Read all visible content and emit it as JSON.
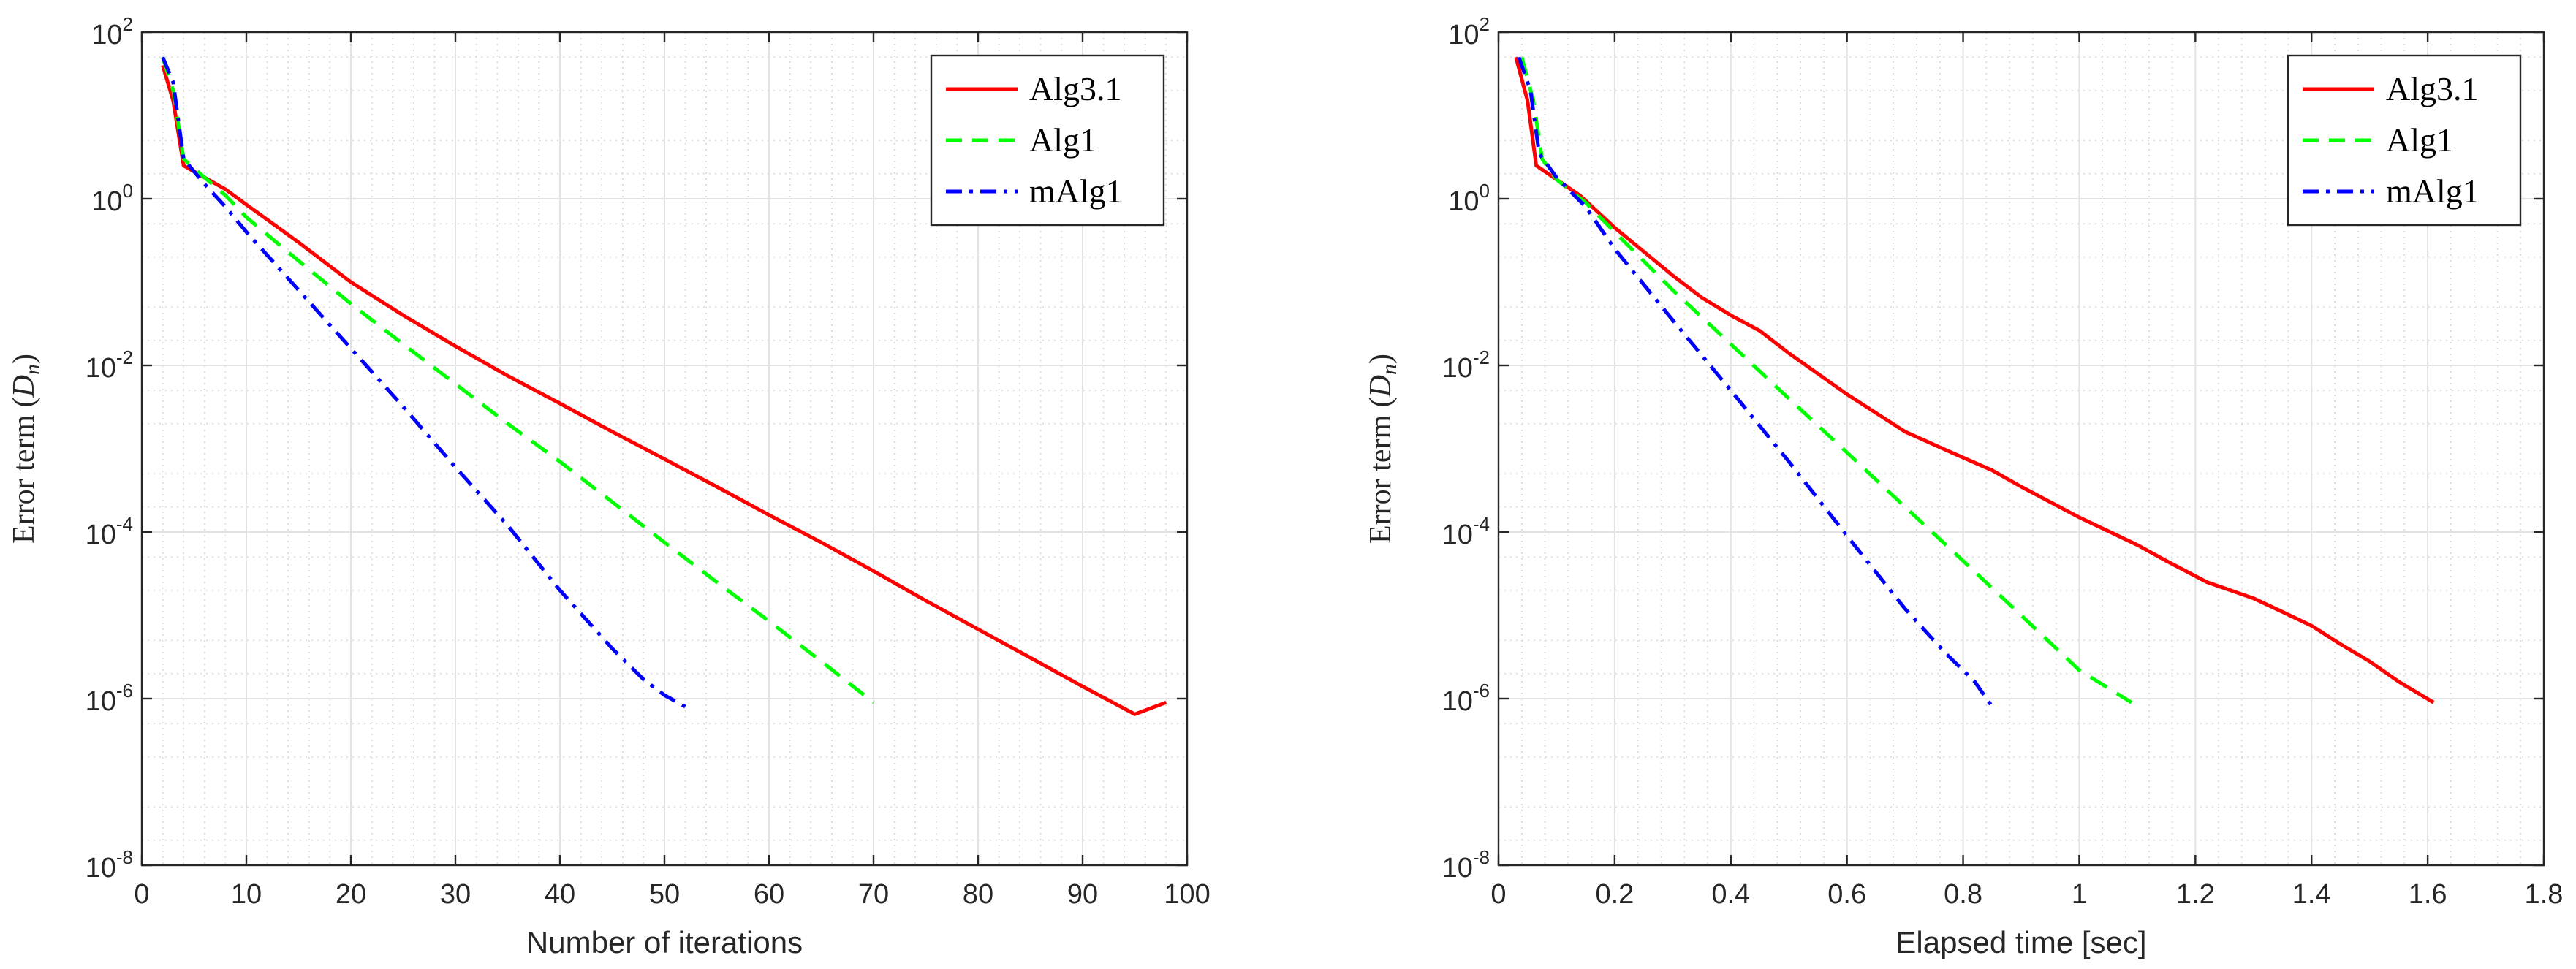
{
  "charts": [
    {
      "type": "line",
      "xlabel": "Number of iterations",
      "ylabel_main": "Error term (",
      "ylabel_var": "D",
      "ylabel_sub": "n",
      "ylabel_close": ")",
      "xlim": [
        0,
        100
      ],
      "xticks": [
        0,
        10,
        20,
        30,
        40,
        50,
        60,
        70,
        80,
        90,
        100
      ],
      "xtick_labels": [
        "0",
        "10",
        "20",
        "30",
        "40",
        "50",
        "60",
        "70",
        "80",
        "90",
        "100"
      ],
      "xminor_step": 2,
      "ylim_log10": [
        -8,
        2
      ],
      "yticks_log10": [
        -8,
        -6,
        -4,
        -2,
        0,
        2
      ],
      "ytick_base": "10",
      "ytick_exps": [
        "-8",
        "-6",
        "-4",
        "-2",
        "0",
        "2"
      ],
      "yminor": [
        2,
        5
      ],
      "grid": true,
      "legend": {
        "location": "top-right",
        "entries": [
          "Alg3.1",
          "Alg1",
          "mAlg1"
        ]
      },
      "series": [
        {
          "name": "Alg3.1",
          "color": "#ff0000",
          "style": "solid",
          "x": [
            2,
            3,
            4,
            6,
            8,
            10,
            15,
            20,
            25,
            30,
            35,
            40,
            45,
            50,
            55,
            60,
            65,
            70,
            75,
            80,
            85,
            90,
            95,
            98
          ],
          "y": [
            40,
            15,
            2.5,
            1.8,
            1.3,
            0.85,
            0.3,
            0.1,
            0.04,
            0.017,
            0.0075,
            0.0035,
            0.0016,
            0.00075,
            0.00035,
            0.00016,
            7.5e-05,
            3.4e-05,
            1.5e-05,
            6.8e-06,
            3.1e-06,
            1.4e-06,
            6.5e-07,
            9e-07
          ]
        },
        {
          "name": "Alg1",
          "color": "#00ff00",
          "style": "dashed",
          "x": [
            2,
            3,
            4,
            6,
            8,
            10,
            15,
            20,
            25,
            30,
            35,
            40,
            45,
            50,
            55,
            60,
            65,
            70
          ],
          "y": [
            50,
            20,
            3,
            1.8,
            1.1,
            0.6,
            0.18,
            0.055,
            0.018,
            0.006,
            0.002,
            0.0007,
            0.00023,
            7.5e-05,
            2.5e-05,
            8.5e-06,
            2.8e-06,
            9e-07
          ]
        },
        {
          "name": "mAlg1",
          "color": "#0000ff",
          "style": "dashdot",
          "x": [
            2,
            3,
            4,
            6,
            8,
            10,
            15,
            20,
            25,
            30,
            35,
            40,
            45,
            48,
            50,
            52
          ],
          "y": [
            50,
            25,
            3,
            1.5,
            0.8,
            0.4,
            0.08,
            0.016,
            0.0032,
            0.0006,
            0.00012,
            2e-05,
            4e-06,
            1.7e-06,
            1.1e-06,
            8e-07
          ]
        }
      ]
    },
    {
      "type": "line",
      "xlabel": "Elapsed time [sec]",
      "ylabel_main": "Error term (",
      "ylabel_var": "D",
      "ylabel_sub": "n",
      "ylabel_close": ")",
      "xlim": [
        0,
        1.8
      ],
      "xticks": [
        0,
        0.2,
        0.4,
        0.6,
        0.8,
        1,
        1.2,
        1.4,
        1.6,
        1.8
      ],
      "xtick_labels": [
        "0",
        "0.2",
        "0.4",
        "0.6",
        "0.8",
        "1",
        "1.2",
        "1.4",
        "1.6",
        "1.8"
      ],
      "xminor_step": 0.04,
      "ylim_log10": [
        -8,
        2
      ],
      "yticks_log10": [
        -8,
        -6,
        -4,
        -2,
        0,
        2
      ],
      "ytick_base": "10",
      "ytick_exps": [
        "-8",
        "-6",
        "-4",
        "-2",
        "0",
        "2"
      ],
      "yminor": [
        2,
        5
      ],
      "grid": true,
      "legend": {
        "location": "top-right",
        "entries": [
          "Alg3.1",
          "Alg1",
          "mAlg1"
        ]
      },
      "series": [
        {
          "name": "Alg3.1",
          "color": "#ff0000",
          "style": "solid",
          "x": [
            0.03,
            0.05,
            0.065,
            0.1,
            0.14,
            0.2,
            0.3,
            0.35,
            0.4,
            0.45,
            0.5,
            0.6,
            0.7,
            0.78,
            0.85,
            0.9,
            1.0,
            1.1,
            1.15,
            1.22,
            1.3,
            1.35,
            1.4,
            1.45,
            1.5,
            1.55,
            1.61
          ],
          "y": [
            50,
            15,
            2.5,
            1.7,
            1.1,
            0.45,
            0.12,
            0.065,
            0.04,
            0.026,
            0.014,
            0.0045,
            0.0016,
            0.0009,
            0.00055,
            0.00035,
            0.00015,
            7e-05,
            4.5e-05,
            2.5e-05,
            1.6e-05,
            1.1e-05,
            7.5e-06,
            4.5e-06,
            2.8e-06,
            1.6e-06,
            9e-07
          ]
        },
        {
          "name": "Alg1",
          "color": "#00ff00",
          "style": "dashed",
          "x": [
            0.04,
            0.06,
            0.075,
            0.1,
            0.15,
            0.2,
            0.3,
            0.4,
            0.5,
            0.6,
            0.7,
            0.8,
            0.9,
            1.0,
            1.09
          ],
          "y": [
            50,
            15,
            3,
            1.7,
            0.9,
            0.4,
            0.08,
            0.018,
            0.004,
            0.0009,
            0.0002,
            4.5e-05,
            1e-05,
            2.2e-06,
            9e-07
          ]
        },
        {
          "name": "mAlg1",
          "color": "#0000ff",
          "style": "dashdot",
          "x": [
            0.035,
            0.055,
            0.07,
            0.1,
            0.15,
            0.2,
            0.3,
            0.4,
            0.5,
            0.6,
            0.7,
            0.77,
            0.82,
            0.85
          ],
          "y": [
            50,
            20,
            3.5,
            1.8,
            0.8,
            0.25,
            0.035,
            0.005,
            0.0007,
            9e-05,
            1.2e-05,
            3.5e-06,
            1.6e-06,
            8e-07
          ]
        }
      ]
    }
  ]
}
